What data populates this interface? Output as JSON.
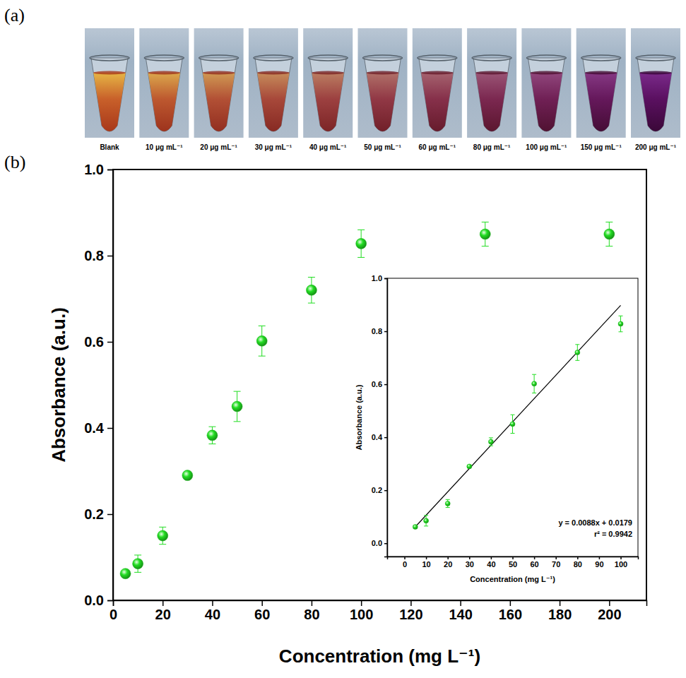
{
  "photo_strip": {
    "letter": "(a)",
    "labels": [
      "Blank",
      "10 μg mL⁻¹",
      "20 μg mL⁻¹",
      "30 μg mL⁻¹",
      "40 μg mL⁻¹",
      "50 μg mL⁻¹",
      "60 μg mL⁻¹",
      "80 μg mL⁻¹",
      "100 μg mL⁻¹",
      "150 μg mL⁻¹",
      "200 μg mL⁻¹"
    ]
  },
  "plot_letter": "(b)",
  "chart_data": [
    {
      "type": "scatter",
      "xlabel": "Concentration (mg L⁻¹)",
      "ylabel": "Absorbance (a.u.)",
      "x": [
        5,
        10,
        20,
        30,
        40,
        50,
        60,
        80,
        100,
        150,
        200
      ],
      "values": [
        0.062,
        0.085,
        0.15,
        0.29,
        0.383,
        0.45,
        0.602,
        0.72,
        0.828,
        0.85,
        0.85
      ],
      "errors": [
        0.005,
        0.02,
        0.02,
        0.005,
        0.02,
        0.035,
        0.035,
        0.03,
        0.032,
        0.028,
        0.028
      ],
      "color": "#22dd22",
      "marker": "circle",
      "xlim": [
        0,
        215
      ],
      "xticks": [
        0,
        20,
        40,
        60,
        80,
        100,
        120,
        140,
        160,
        180,
        200
      ],
      "ylim": [
        0,
        1
      ],
      "yticks": [
        {
          "value": 0,
          "label": "0.0"
        },
        0.2,
        0.4,
        0.6,
        0.8,
        {
          "value": 1,
          "label": "1.0"
        }
      ]
    },
    {
      "type": "scatter",
      "xlabel": "Concentration (mg L⁻¹)",
      "ylabel": "Absorbance (a.u.)",
      "x": [
        5,
        10,
        20,
        30,
        40,
        50,
        60,
        80,
        100
      ],
      "values": [
        0.062,
        0.085,
        0.15,
        0.29,
        0.383,
        0.45,
        0.602,
        0.72,
        0.828
      ],
      "errors": [
        0.005,
        0.02,
        0.015,
        0.005,
        0.015,
        0.035,
        0.035,
        0.03,
        0.03
      ],
      "color": "#22dd22",
      "marker": "circle",
      "fit": {
        "x": [
          5,
          100
        ],
        "values": [
          0.0619,
          0.8979
        ],
        "color": "#000000"
      },
      "annotations": [
        "y = 0.0088x + 0.0179",
        "r² = 0.9942"
      ],
      "xlim": [
        -8,
        108
      ],
      "xticks": [
        0,
        10,
        20,
        30,
        40,
        50,
        60,
        70,
        80,
        90,
        100
      ],
      "ylim": [
        -0.05,
        1
      ],
      "yticks": [
        {
          "value": 0,
          "label": "0.0"
        },
        0.2,
        0.4,
        0.6,
        0.8,
        {
          "value": 1,
          "label": "1.0"
        }
      ]
    }
  ]
}
